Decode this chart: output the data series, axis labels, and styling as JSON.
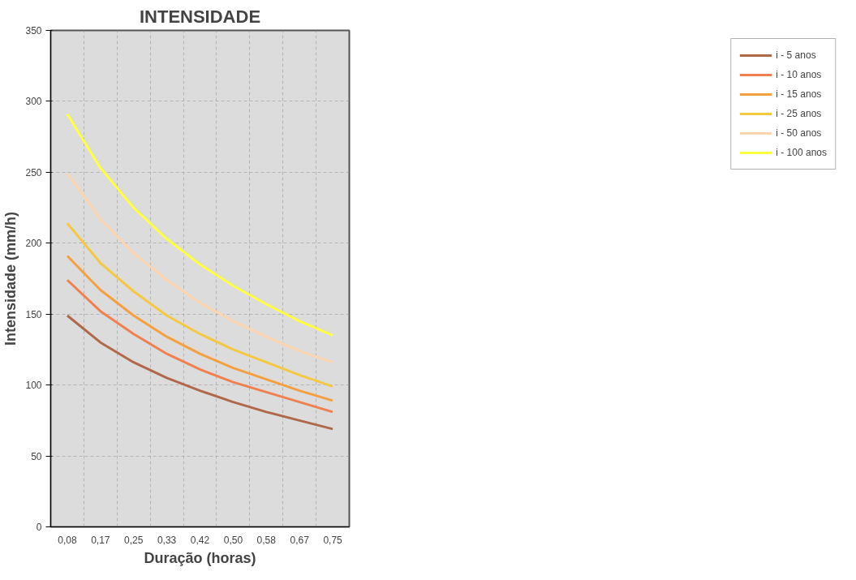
{
  "chart_data": {
    "type": "line",
    "title": "INTENSIDADE",
    "xlabel": "Duração (horas)",
    "ylabel": "Intensidade (mm/h)",
    "categories": [
      "0,08",
      "0,17",
      "0,25",
      "0,33",
      "0,42",
      "0,50",
      "0,58",
      "0,67",
      "0,75"
    ],
    "series": [
      {
        "name": "i - 5 anos",
        "color": "#b0684a",
        "values": [
          149,
          130,
          116,
          105,
          96,
          88,
          81,
          75,
          69
        ]
      },
      {
        "name": "i - 10 anos",
        "color": "#f08050",
        "values": [
          174,
          152,
          136,
          122,
          111,
          102,
          95,
          88,
          81
        ]
      },
      {
        "name": "i - 15 anos",
        "color": "#f5a040",
        "values": [
          191,
          167,
          149,
          134,
          122,
          112,
          104,
          96,
          89
        ]
      },
      {
        "name": "i - 25 anos",
        "color": "#f5c842",
        "values": [
          214,
          186,
          166,
          149,
          136,
          125,
          116,
          107,
          99
        ]
      },
      {
        "name": "i - 50 anos",
        "color": "#fcd5b0",
        "values": [
          249,
          217,
          193,
          174,
          158,
          145,
          134,
          124,
          116
        ]
      },
      {
        "name": "i - 100 anos",
        "color": "#ffff40",
        "values": [
          291,
          253,
          225,
          203,
          185,
          170,
          157,
          145,
          135
        ]
      }
    ],
    "ylim": [
      0,
      350
    ],
    "yticks": [
      0,
      50,
      100,
      150,
      200,
      250,
      300,
      350
    ],
    "grid": true,
    "legend": "right",
    "marker": "none",
    "line_style": "solid"
  }
}
